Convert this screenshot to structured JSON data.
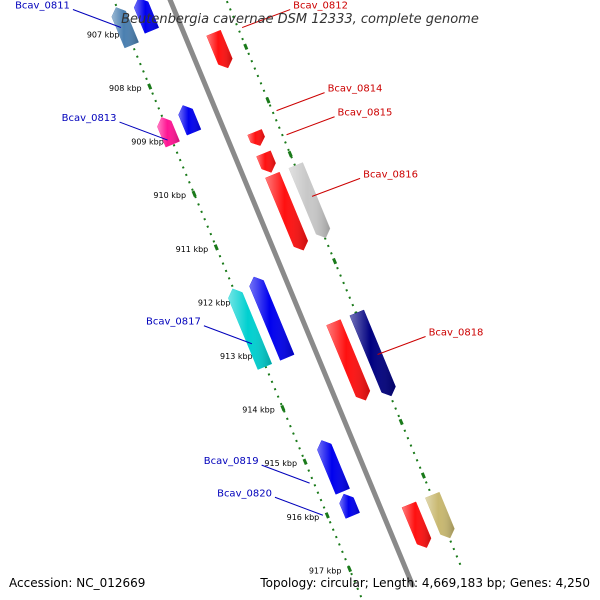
{
  "title": "Beutenbergia cavernae DSM 12333, complete genome",
  "footer": {
    "accession": "Accession: NC_012669",
    "topology": "Topology: circular; Length: 4,669,183 bp; Genes: 4,250"
  },
  "colors": {
    "backbone": "#8a8a8a",
    "ticks": "#1a7a1a",
    "forward_label": "#0000bb",
    "reverse_label": "#cc0000"
  },
  "scale": {
    "unit": "kbp",
    "ticks": [
      {
        "kbp": 907,
        "label": "907 kbp"
      },
      {
        "kbp": 908,
        "label": "908 kbp"
      },
      {
        "kbp": 909,
        "label": "909 kbp"
      },
      {
        "kbp": 910,
        "label": "910 kbp"
      },
      {
        "kbp": 911,
        "label": "911 kbp"
      },
      {
        "kbp": 912,
        "label": "912 kbp"
      },
      {
        "kbp": 913,
        "label": "913 kbp"
      },
      {
        "kbp": 914,
        "label": "914 kbp"
      },
      {
        "kbp": 915,
        "label": "915 kbp"
      },
      {
        "kbp": 916,
        "label": "916 kbp"
      },
      {
        "kbp": 917,
        "label": "917 kbp"
      }
    ]
  },
  "genes": [
    {
      "start": 906.55,
      "end": 907.25,
      "strand": -1,
      "lane": -2.4,
      "color": "#4a7fb0"
    },
    {
      "start": 906.55,
      "end": 907.15,
      "strand": -1,
      "lane": -1.3,
      "color": "#0000ee"
    },
    {
      "start": 907.6,
      "end": 908.25,
      "strand": 1,
      "lane": 1.25,
      "color": "#ff1010"
    },
    {
      "start": 908.6,
      "end": 909.1,
      "strand": -1,
      "lane": -2.4,
      "color": "#ff1493"
    },
    {
      "start": 908.55,
      "end": 909.05,
      "strand": -1,
      "lane": -1.3,
      "color": "#0000ee"
    },
    {
      "start": 909.45,
      "end": 909.7,
      "strand": 1,
      "lane": 1.25,
      "color": "#ff1010"
    },
    {
      "start": 909.85,
      "end": 910.2,
      "strand": 1,
      "lane": 1.25,
      "color": "#ff1010"
    },
    {
      "start": 910.25,
      "end": 911.65,
      "strand": 1,
      "lane": 1.25,
      "color": "#ff1010"
    },
    {
      "start": 910.25,
      "end": 911.6,
      "strand": 1,
      "lane": 2.4,
      "color": "#c8c8c8"
    },
    {
      "start": 911.8,
      "end": 913.25,
      "strand": -1,
      "lane": -2.4,
      "color": "#00d0d0"
    },
    {
      "start": 911.75,
      "end": 913.25,
      "strand": -1,
      "lane": -1.3,
      "color": "#0000ee"
    },
    {
      "start": 913.0,
      "end": 914.45,
      "strand": 1,
      "lane": 1.25,
      "color": "#ff1010"
    },
    {
      "start": 913.0,
      "end": 914.55,
      "strand": 1,
      "lane": 2.4,
      "color": "#000080"
    },
    {
      "start": 914.8,
      "end": 915.75,
      "strand": -1,
      "lane": -1.3,
      "color": "#0000ee"
    },
    {
      "start": 915.8,
      "end": 916.2,
      "strand": -1,
      "lane": -1.3,
      "color": "#0000ee"
    },
    {
      "start": 916.4,
      "end": 917.2,
      "strand": 1,
      "lane": 1.25,
      "color": "#ff1010"
    },
    {
      "start": 916.4,
      "end": 917.2,
      "strand": 1,
      "lane": 2.4,
      "color": "#c8b870"
    }
  ],
  "labels": [
    {
      "text": "Bcav_0811",
      "side": "left",
      "strand": -1,
      "kbp": 906.9
    },
    {
      "text": "Bcav_0812",
      "side": "right",
      "strand": 1,
      "kbp": 907.7
    },
    {
      "text": "Bcav_0813",
      "side": "left",
      "strand": -1,
      "kbp": 909.0
    },
    {
      "text": "Bcav_0814",
      "side": "right",
      "strand": 1,
      "kbp": 909.25
    },
    {
      "text": "Bcav_0815",
      "side": "right",
      "strand": 1,
      "kbp": 909.7
    },
    {
      "text": "Bcav_0816",
      "side": "right",
      "strand": 1,
      "kbp": 910.85
    },
    {
      "text": "Bcav_0817",
      "side": "left",
      "strand": -1,
      "kbp": 912.8
    },
    {
      "text": "Bcav_0818",
      "side": "right",
      "strand": 1,
      "kbp": 913.8
    },
    {
      "text": "Bcav_0819",
      "side": "left",
      "strand": -1,
      "kbp": 915.4
    },
    {
      "text": "Bcav_0820",
      "side": "left",
      "strand": -1,
      "kbp": 916.0
    }
  ]
}
